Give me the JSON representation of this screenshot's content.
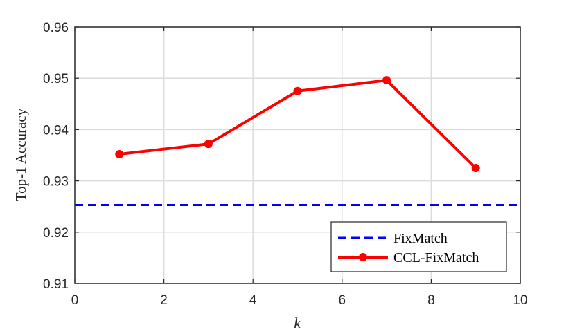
{
  "chart_data": {
    "type": "line",
    "xlabel": "k",
    "ylabel": "Top-1 Accuracy",
    "xlim": [
      0,
      10
    ],
    "ylim": [
      0.91,
      0.96
    ],
    "xticks": [
      0,
      2,
      4,
      6,
      8,
      10
    ],
    "yticks": [
      0.91,
      0.92,
      0.93,
      0.94,
      0.95,
      0.96
    ],
    "xtick_labels": [
      "0",
      "2",
      "4",
      "6",
      "8",
      "10"
    ],
    "ytick_labels": [
      "0.91",
      "0.92",
      "0.93",
      "0.94",
      "0.95",
      "0.96"
    ],
    "grid": true,
    "legend_position": "bottom-right",
    "series": [
      {
        "name": "FixMatch",
        "style": "dashed",
        "color": "#0000ff",
        "x": [
          0,
          10
        ],
        "y": [
          0.9253,
          0.9253
        ]
      },
      {
        "name": "CCL-FixMatch",
        "style": "solid-marker",
        "color": "#ff0000",
        "x": [
          1,
          3,
          5,
          7,
          9
        ],
        "y": [
          0.9352,
          0.9372,
          0.9475,
          0.9496,
          0.9325
        ]
      }
    ]
  }
}
